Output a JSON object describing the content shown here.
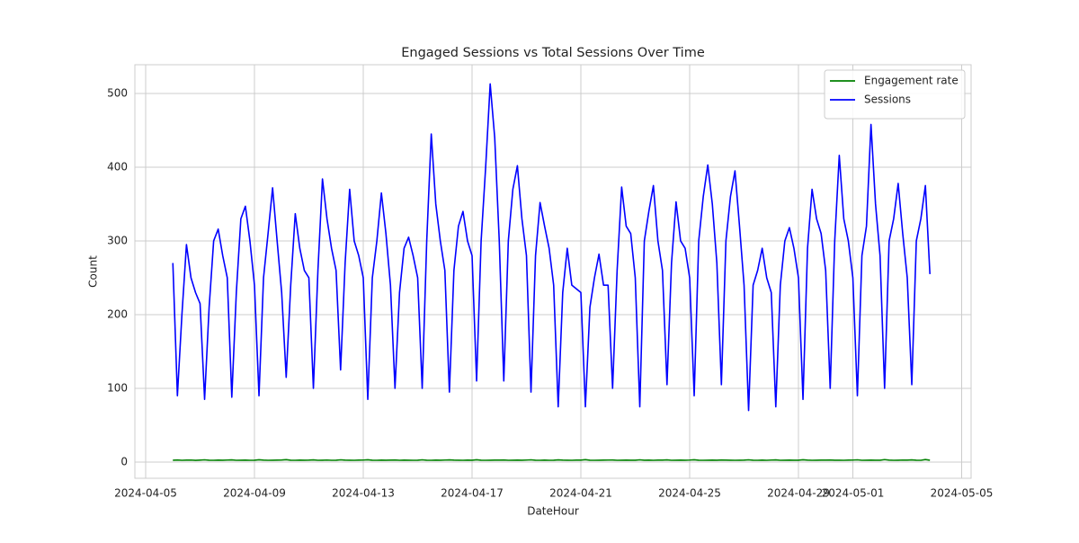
{
  "chart_data": {
    "type": "line",
    "title": "Engaged Sessions vs Total Sessions Over Time",
    "x_label": "DateHour",
    "y_label": "Count",
    "x": [
      "2024-04-06 00:00",
      "2024-04-06 04:00",
      "2024-04-06 08:00",
      "2024-04-06 12:00",
      "2024-04-06 16:00",
      "2024-04-06 20:00",
      "2024-04-07 00:00",
      "2024-04-07 04:00",
      "2024-04-07 08:00",
      "2024-04-07 12:00",
      "2024-04-07 16:00",
      "2024-04-07 20:00",
      "2024-04-08 00:00",
      "2024-04-08 04:00",
      "2024-04-08 08:00",
      "2024-04-08 12:00",
      "2024-04-08 16:00",
      "2024-04-08 20:00",
      "2024-04-09 00:00",
      "2024-04-09 04:00",
      "2024-04-09 08:00",
      "2024-04-09 12:00",
      "2024-04-09 16:00",
      "2024-04-09 20:00",
      "2024-04-10 00:00",
      "2024-04-10 04:00",
      "2024-04-10 08:00",
      "2024-04-10 12:00",
      "2024-04-10 16:00",
      "2024-04-10 20:00",
      "2024-04-11 00:00",
      "2024-04-11 04:00",
      "2024-04-11 08:00",
      "2024-04-11 12:00",
      "2024-04-11 16:00",
      "2024-04-11 20:00",
      "2024-04-12 00:00",
      "2024-04-12 04:00",
      "2024-04-12 08:00",
      "2024-04-12 12:00",
      "2024-04-12 16:00",
      "2024-04-12 20:00",
      "2024-04-13 00:00",
      "2024-04-13 04:00",
      "2024-04-13 08:00",
      "2024-04-13 12:00",
      "2024-04-13 16:00",
      "2024-04-13 20:00",
      "2024-04-14 00:00",
      "2024-04-14 04:00",
      "2024-04-14 08:00",
      "2024-04-14 12:00",
      "2024-04-14 16:00",
      "2024-04-14 20:00",
      "2024-04-15 00:00",
      "2024-04-15 04:00",
      "2024-04-15 08:00",
      "2024-04-15 12:00",
      "2024-04-15 16:00",
      "2024-04-15 20:00",
      "2024-04-16 00:00",
      "2024-04-16 04:00",
      "2024-04-16 08:00",
      "2024-04-16 12:00",
      "2024-04-16 16:00",
      "2024-04-16 20:00",
      "2024-04-17 00:00",
      "2024-04-17 04:00",
      "2024-04-17 08:00",
      "2024-04-17 12:00",
      "2024-04-17 16:00",
      "2024-04-17 20:00",
      "2024-04-18 00:00",
      "2024-04-18 04:00",
      "2024-04-18 08:00",
      "2024-04-18 12:00",
      "2024-04-18 16:00",
      "2024-04-18 20:00",
      "2024-04-19 00:00",
      "2024-04-19 04:00",
      "2024-04-19 08:00",
      "2024-04-19 12:00",
      "2024-04-19 16:00",
      "2024-04-19 20:00",
      "2024-04-20 00:00",
      "2024-04-20 04:00",
      "2024-04-20 08:00",
      "2024-04-20 12:00",
      "2024-04-20 16:00",
      "2024-04-20 20:00",
      "2024-04-21 00:00",
      "2024-04-21 04:00",
      "2024-04-21 08:00",
      "2024-04-21 12:00",
      "2024-04-21 16:00",
      "2024-04-21 20:00",
      "2024-04-22 00:00",
      "2024-04-22 04:00",
      "2024-04-22 08:00",
      "2024-04-22 12:00",
      "2024-04-22 16:00",
      "2024-04-22 20:00",
      "2024-04-23 00:00",
      "2024-04-23 04:00",
      "2024-04-23 08:00",
      "2024-04-23 12:00",
      "2024-04-23 16:00",
      "2024-04-23 20:00",
      "2024-04-24 00:00",
      "2024-04-24 04:00",
      "2024-04-24 08:00",
      "2024-04-24 12:00",
      "2024-04-24 16:00",
      "2024-04-24 20:00",
      "2024-04-25 00:00",
      "2024-04-25 04:00",
      "2024-04-25 08:00",
      "2024-04-25 12:00",
      "2024-04-25 16:00",
      "2024-04-25 20:00",
      "2024-04-26 00:00",
      "2024-04-26 04:00",
      "2024-04-26 08:00",
      "2024-04-26 12:00",
      "2024-04-26 16:00",
      "2024-04-26 20:00",
      "2024-04-27 00:00",
      "2024-04-27 04:00",
      "2024-04-27 08:00",
      "2024-04-27 12:00",
      "2024-04-27 16:00",
      "2024-04-27 20:00",
      "2024-04-28 00:00",
      "2024-04-28 04:00",
      "2024-04-28 08:00",
      "2024-04-28 12:00",
      "2024-04-28 16:00",
      "2024-04-28 20:00",
      "2024-04-29 00:00",
      "2024-04-29 04:00",
      "2024-04-29 08:00",
      "2024-04-29 12:00",
      "2024-04-29 16:00",
      "2024-04-29 20:00",
      "2024-04-30 00:00",
      "2024-04-30 04:00",
      "2024-04-30 08:00",
      "2024-04-30 12:00",
      "2024-04-30 16:00",
      "2024-04-30 20:00",
      "2024-05-01 00:00",
      "2024-05-01 04:00",
      "2024-05-01 08:00",
      "2024-05-01 12:00",
      "2024-05-01 16:00",
      "2024-05-01 20:00",
      "2024-05-02 00:00",
      "2024-05-02 04:00",
      "2024-05-02 08:00",
      "2024-05-02 12:00",
      "2024-05-02 16:00",
      "2024-05-02 20:00",
      "2024-05-03 00:00",
      "2024-05-03 04:00",
      "2024-05-03 08:00",
      "2024-05-03 12:00",
      "2024-05-03 16:00",
      "2024-05-03 20:00"
    ],
    "series": [
      {
        "name": "Engagement rate",
        "color": "#008000",
        "values": [
          2.5,
          2.8,
          2.4,
          2.6,
          2.7,
          2.3,
          2.6,
          3.0,
          2.5,
          2.4,
          2.6,
          2.5,
          2.7,
          2.9,
          2.4,
          2.5,
          2.6,
          2.4,
          2.5,
          3.1,
          2.6,
          2.4,
          2.5,
          2.6,
          2.8,
          3.2,
          2.5,
          2.4,
          2.6,
          2.5,
          2.6,
          2.9,
          2.4,
          2.5,
          2.7,
          2.4,
          2.5,
          3.0,
          2.6,
          2.5,
          2.4,
          2.6,
          2.7,
          3.1,
          2.5,
          2.4,
          2.6,
          2.5,
          2.6,
          2.8,
          2.4,
          2.6,
          2.5,
          2.4,
          2.5,
          3.0,
          2.5,
          2.4,
          2.6,
          2.5,
          2.7,
          2.9,
          2.6,
          2.5,
          2.4,
          2.6,
          2.5,
          3.1,
          2.5,
          2.4,
          2.5,
          2.6,
          2.6,
          2.8,
          2.4,
          2.5,
          2.6,
          2.5,
          2.7,
          3.0,
          2.5,
          2.4,
          2.6,
          2.4,
          2.5,
          2.9,
          2.6,
          2.5,
          2.4,
          2.6,
          2.6,
          3.2,
          2.5,
          2.4,
          2.5,
          2.6,
          2.7,
          2.8,
          2.4,
          2.5,
          2.6,
          2.5,
          2.5,
          3.0,
          2.5,
          2.6,
          2.4,
          2.6,
          2.6,
          2.9,
          2.4,
          2.5,
          2.6,
          2.5,
          2.7,
          3.1,
          2.5,
          2.4,
          2.5,
          2.6,
          2.5,
          2.8,
          2.6,
          2.5,
          2.4,
          2.5,
          2.6,
          3.0,
          2.5,
          2.4,
          2.6,
          2.4,
          2.7,
          2.9,
          2.4,
          2.5,
          2.6,
          2.5,
          2.5,
          3.1,
          2.6,
          2.4,
          2.5,
          2.6,
          2.6,
          2.8,
          2.5,
          2.5,
          2.4,
          2.6,
          2.7,
          3.0,
          2.4,
          2.5,
          2.6,
          2.5,
          2.5,
          3.3,
          2.6,
          2.4,
          2.5,
          2.7,
          2.6,
          2.9,
          2.5,
          2.4,
          3.4,
          2.5
        ]
      },
      {
        "name": "Sessions",
        "color": "#0000ff",
        "values": [
          270,
          90,
          200,
          295,
          250,
          230,
          215,
          85,
          210,
          300,
          316,
          280,
          250,
          88,
          230,
          330,
          347,
          300,
          240,
          90,
          250,
          310,
          372,
          300,
          230,
          115,
          240,
          337,
          290,
          260,
          250,
          100,
          260,
          384,
          330,
          290,
          260,
          125,
          270,
          370,
          300,
          280,
          250,
          85,
          250,
          300,
          365,
          310,
          240,
          100,
          230,
          290,
          305,
          280,
          250,
          100,
          300,
          445,
          350,
          300,
          260,
          95,
          260,
          320,
          340,
          300,
          280,
          110,
          300,
          400,
          513,
          440,
          300,
          110,
          300,
          370,
          402,
          330,
          280,
          95,
          280,
          352,
          320,
          290,
          240,
          75,
          230,
          290,
          240,
          235,
          230,
          75,
          210,
          250,
          282,
          240,
          240,
          100,
          260,
          373,
          320,
          310,
          250,
          75,
          300,
          340,
          375,
          300,
          260,
          105,
          270,
          353,
          300,
          290,
          250,
          90,
          300,
          360,
          403,
          350,
          270,
          105,
          300,
          360,
          395,
          320,
          240,
          70,
          240,
          260,
          290,
          250,
          230,
          75,
          240,
          300,
          318,
          290,
          250,
          85,
          290,
          370,
          330,
          310,
          260,
          100,
          300,
          416,
          330,
          300,
          250,
          90,
          280,
          320,
          458,
          350,
          280,
          100,
          300,
          330,
          378,
          310,
          250,
          105,
          300,
          330,
          375,
          255
        ]
      }
    ],
    "xlim": [
      "2024-04-04 14:29",
      "2024-05-05 08:20"
    ],
    "xticks": [
      "2024-04-05",
      "2024-04-09",
      "2024-04-13",
      "2024-04-17",
      "2024-04-21",
      "2024-04-25",
      "2024-04-29",
      "2024-05-01",
      "2024-05-05"
    ],
    "ylim": [
      -22,
      539
    ],
    "yticks": [
      0,
      100,
      200,
      300,
      400,
      500
    ],
    "grid": true,
    "legend": "upper right"
  }
}
